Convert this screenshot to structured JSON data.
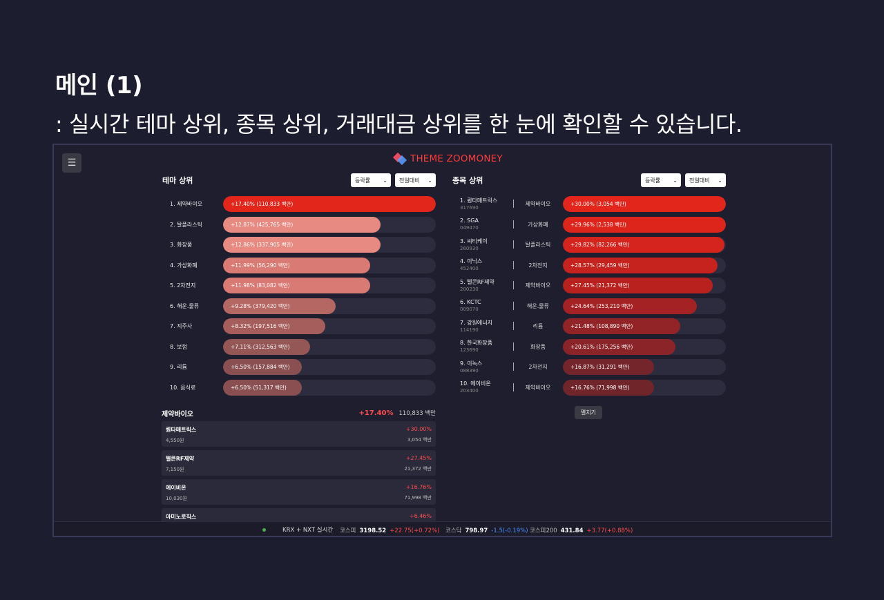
{
  "headline": {
    "title": "메인 (1)",
    "subtitle": ": 실시간 테마 상위, 종목 상위, 거래대금 상위를 한 눈에 확인할 수 있습니다."
  },
  "app": {
    "menu_icon": "☰",
    "brand": "THEME ZOOMONEY",
    "colors": {
      "accent": "#ff3b3b",
      "up": "#ff4d4d",
      "down": "#4d8dff"
    }
  },
  "theme_panel": {
    "title": "테마 상위",
    "sort_select": "등락률",
    "basis_select": "전일대비",
    "items": [
      {
        "name": "1. 제약바이오",
        "label": "+17.40% (110,833 백만)",
        "fill": 1.0,
        "color": "#e3261c"
      },
      {
        "name": "2. 탈플라스틱",
        "label": "+12.87% (425,765 백만)",
        "fill": 0.74,
        "color": "#e78a82"
      },
      {
        "name": "3. 화장품",
        "label": "+12.86% (337,905 백만)",
        "fill": 0.74,
        "color": "#e78a82"
      },
      {
        "name": "4. 가상화폐",
        "label": "+11.99% (56,290 백만)",
        "fill": 0.69,
        "color": "#d97a74"
      },
      {
        "name": "5. 2차전지",
        "label": "+11.98% (83,082 백만)",
        "fill": 0.69,
        "color": "#d97a74"
      },
      {
        "name": "6. 해운.물류",
        "label": "+9.28% (379,420 백만)",
        "fill": 0.53,
        "color": "#b56764"
      },
      {
        "name": "7. 지주사",
        "label": "+8.32% (197,516 백만)",
        "fill": 0.48,
        "color": "#a65e5c"
      },
      {
        "name": "8. 보험",
        "label": "+7.11% (312,563 백만)",
        "fill": 0.41,
        "color": "#955656"
      },
      {
        "name": "9. 리튬",
        "label": "+6.50% (157,884 백만)",
        "fill": 0.37,
        "color": "#8a4f51"
      },
      {
        "name": "10. 음식료",
        "label": "+6.50% (51,317 백만)",
        "fill": 0.37,
        "color": "#8a4f51"
      }
    ]
  },
  "stock_panel": {
    "title": "종목 상위",
    "sort_select": "등락률",
    "basis_select": "전일대비",
    "expand_label": "펼치기",
    "items": [
      {
        "name": "1. 퀀타매트릭스",
        "code": "317690",
        "theme": "제약바이오",
        "label": "+30.00% (3,054 백만)",
        "fill": 1.0,
        "color": "#e3261c"
      },
      {
        "name": "2. SGA",
        "code": "049470",
        "theme": "가상화폐",
        "label": "+29.96% (2,538 백만)",
        "fill": 1.0,
        "color": "#de251c"
      },
      {
        "name": "3. 씨티케이",
        "code": "260930",
        "theme": "탈플라스틱",
        "label": "+29.82% (82,266 백만)",
        "fill": 0.99,
        "color": "#d5241d"
      },
      {
        "name": "4. 이닉스",
        "code": "452400",
        "theme": "2차전지",
        "label": "+28.57% (29,459 백만)",
        "fill": 0.95,
        "color": "#c6221e"
      },
      {
        "name": "5. 텔콘RF제약",
        "code": "200230",
        "theme": "제약바이오",
        "label": "+27.45% (21,372 백만)",
        "fill": 0.92,
        "color": "#b9211f"
      },
      {
        "name": "6. KCTC",
        "code": "009070",
        "theme": "해운.물류",
        "label": "+24.64% (253,210 백만)",
        "fill": 0.82,
        "color": "#a42224"
      },
      {
        "name": "7. 강원에너지",
        "code": "114190",
        "theme": "리튬",
        "label": "+21.48% (108,890 백만)",
        "fill": 0.72,
        "color": "#922427"
      },
      {
        "name": "8. 한국화장품",
        "code": "123690",
        "theme": "화장품",
        "label": "+20.61% (175,256 백만)",
        "fill": 0.69,
        "color": "#8b2428"
      },
      {
        "name": "9. 이녹스",
        "code": "088390",
        "theme": "2차전지",
        "label": "+16.87% (31,291 백만)",
        "fill": 0.56,
        "color": "#74252b"
      },
      {
        "name": "10. 에이비온",
        "code": "203400",
        "theme": "제약바이오",
        "label": "+16.76% (71,998 백만)",
        "fill": 0.56,
        "color": "#70252b"
      }
    ]
  },
  "detail": {
    "title": "제약바이오",
    "pct": "+17.40%",
    "amount": "110,833 백만",
    "stocks": [
      {
        "name": "퀀타매트릭스",
        "price": "4,550원",
        "rate": "+30.00%",
        "amount": "3,054 백만"
      },
      {
        "name": "텔콘RF제약",
        "price": "7,150원",
        "rate": "+27.45%",
        "amount": "21,372 백만"
      },
      {
        "name": "에이비온",
        "price": "10,030원",
        "rate": "+16.76%",
        "amount": "71,998 백만"
      },
      {
        "name": "아미노로직스",
        "price": "",
        "rate": "+6.46%",
        "amount": ""
      }
    ]
  },
  "ticker": {
    "label": "KRX + NXT 실시간",
    "indices": [
      {
        "name": "코스피",
        "value": "3198.52",
        "change": "+22.75(+0.72%)",
        "dir": "up"
      },
      {
        "name": "코스닥",
        "value": "798.97",
        "change": "-1.5(-0.19%)",
        "dir": "down"
      },
      {
        "name": "코스피200",
        "value": "431.84",
        "change": "+3.77(+0.88%)",
        "dir": "up"
      }
    ]
  }
}
